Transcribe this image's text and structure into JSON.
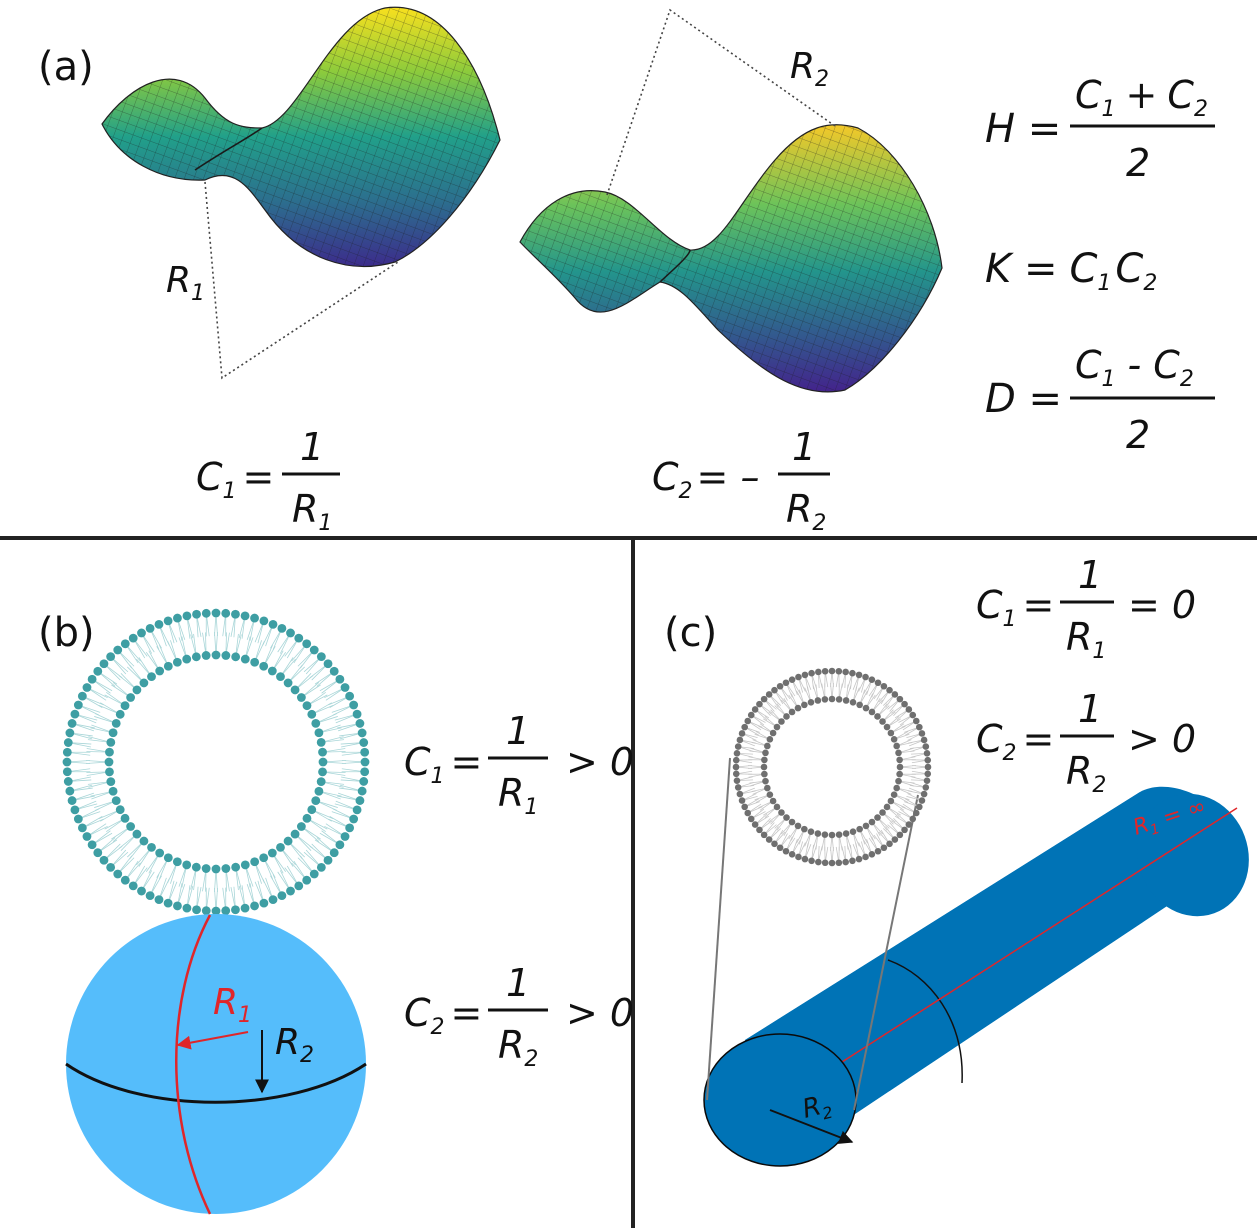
{
  "panel_a": {
    "label": "(a)",
    "R1": "R",
    "R1_sub": "1",
    "R2": "R",
    "R2_sub": "2",
    "eq_c1": {
      "lhs": "C",
      "lhs_sub": "1",
      "eq": "=",
      "num": "1",
      "den": "R",
      "den_sub": "1"
    },
    "eq_c2": {
      "lhs": "C",
      "lhs_sub": "2",
      "eq": "= –",
      "num": "1",
      "den": "R",
      "den_sub": "2"
    },
    "eq_H": {
      "lhs": "H =",
      "num_a": "C",
      "num_a_sub": "1",
      "op": "+",
      "num_b": "C",
      "num_b_sub": "2",
      "den": "2"
    },
    "eq_K": {
      "lhs": "K =",
      "a": "C",
      "a_sub": "1",
      "b": "C",
      "b_sub": "2"
    },
    "eq_D": {
      "lhs": "D =",
      "num_a": "C",
      "num_a_sub": "1",
      "op": "-",
      "num_b": "C",
      "num_b_sub": "2",
      "den": "2"
    }
  },
  "panel_b": {
    "label": "(b)",
    "eq_c1": {
      "lhs": "C",
      "lhs_sub": "1",
      "eq": "=",
      "num": "1",
      "den": "R",
      "den_sub": "1",
      "rel": "> 0"
    },
    "eq_c2": {
      "lhs": "C",
      "lhs_sub": "2",
      "eq": "=",
      "num": "1",
      "den": "R",
      "den_sub": "2",
      "rel": "> 0"
    },
    "sphere_R1": "R",
    "sphere_R1_sub": "1",
    "sphere_R2": "R",
    "sphere_R2_sub": "2"
  },
  "panel_c": {
    "label": "(c)",
    "eq_c1": {
      "lhs": "C",
      "lhs_sub": "1",
      "eq": "=",
      "num": "1",
      "den": "R",
      "den_sub": "1",
      "rel": "= 0"
    },
    "eq_c2": {
      "lhs": "C",
      "lhs_sub": "2",
      "eq": "=",
      "num": "1",
      "den": "R",
      "den_sub": "2",
      "rel": "> 0"
    },
    "cyl_R1": "R",
    "cyl_R1_sub": "1",
    "cyl_R1_val": " = ∞",
    "cyl_R2": "R",
    "cyl_R2_sub": "2"
  },
  "colors": {
    "sphere": "#55bdfb",
    "cylinder": "#0073b6",
    "lipid_teal": "#3e9ea3",
    "lipid_gray": "#6f6f6f",
    "red": "#e0262a"
  }
}
